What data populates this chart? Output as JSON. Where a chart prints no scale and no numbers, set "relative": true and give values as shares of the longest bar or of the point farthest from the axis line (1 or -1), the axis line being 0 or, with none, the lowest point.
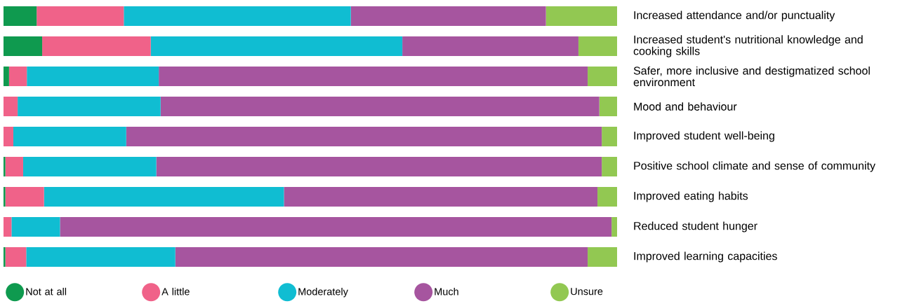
{
  "chart_data": {
    "type": "bar",
    "orientation": "horizontal",
    "stacked": true,
    "relative": true,
    "legend": "bottom",
    "categories": [
      "Increased attendance and/or punctuality",
      "Increased student's nutritional knowledge and cooking skills",
      "Safer, more inclusive and destigmatized school environment",
      "Mood and behaviour",
      "Improved student well-being",
      "Positive school climate and sense of community",
      "Improved eating habits",
      "Reduced student hunger",
      "Improved learning capacities"
    ],
    "series": [
      {
        "name": "Not at all",
        "color": "#0f9a4f",
        "values": [
          0.054,
          0.063,
          0.009,
          0,
          0,
          0.003,
          0.003,
          0,
          0.003
        ]
      },
      {
        "name": "A little",
        "color": "#f06289",
        "values": [
          0.142,
          0.177,
          0.029,
          0.023,
          0.016,
          0.029,
          0.063,
          0.013,
          0.034
        ]
      },
      {
        "name": "Moderately",
        "color": "#10bdd2",
        "values": [
          0.37,
          0.41,
          0.215,
          0.233,
          0.184,
          0.217,
          0.391,
          0.079,
          0.243
        ]
      },
      {
        "name": "Much",
        "color": "#a6559f",
        "values": [
          0.318,
          0.287,
          0.699,
          0.715,
          0.775,
          0.726,
          0.511,
          0.899,
          0.672
        ]
      },
      {
        "name": "Unsure",
        "color": "#92c852",
        "values": [
          0.116,
          0.063,
          0.048,
          0.029,
          0.025,
          0.025,
          0.032,
          0.009,
          0.048
        ]
      }
    ]
  }
}
